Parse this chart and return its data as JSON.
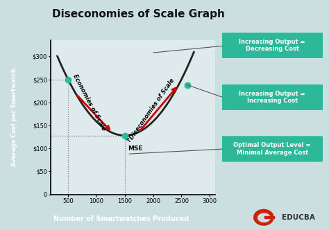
{
  "title": "Diseconomies of Scale Graph",
  "xlabel": "Number of Smartwatches Produced",
  "ylabel": "Average Cost per Smartwatch",
  "bg_color": "#ccdfe0",
  "plot_bg_color": "#deeaeb",
  "title_color": "#111111",
  "curve_color": "#222222",
  "red_arrow_color": "#cc0000",
  "teal_dot_color": "#2db89a",
  "teal_box_color": "#2db89a",
  "xlabel_bg": "#2db89a",
  "ylabel_bg": "#2db89a",
  "yticks": [
    0,
    50,
    100,
    150,
    200,
    250,
    300
  ],
  "ytick_labels": [
    "0",
    "$50",
    "$100",
    "$150",
    "$200",
    "$250",
    "$300"
  ],
  "xticks": [
    500,
    1000,
    1500,
    2000,
    2500,
    3000
  ],
  "xlim": [
    200,
    3100
  ],
  "ylim": [
    0,
    335
  ],
  "mse_x": 1500,
  "mse_y": 128,
  "dot1_x": 500,
  "dot1_y": 250,
  "dot2_x": 2600,
  "dot2_y": 238,
  "annotation_box1": "Increasing Output =\nDecreasing Cost",
  "annotation_box2": "Increasing Output =\nIncreasing Cost",
  "annotation_box3": "Optimal Output Level =\nMinimal Average Cost",
  "economies_label": "Economies of Scale",
  "diseconomies_label": "Diseconomies of Scale",
  "mse_label": "MSE"
}
